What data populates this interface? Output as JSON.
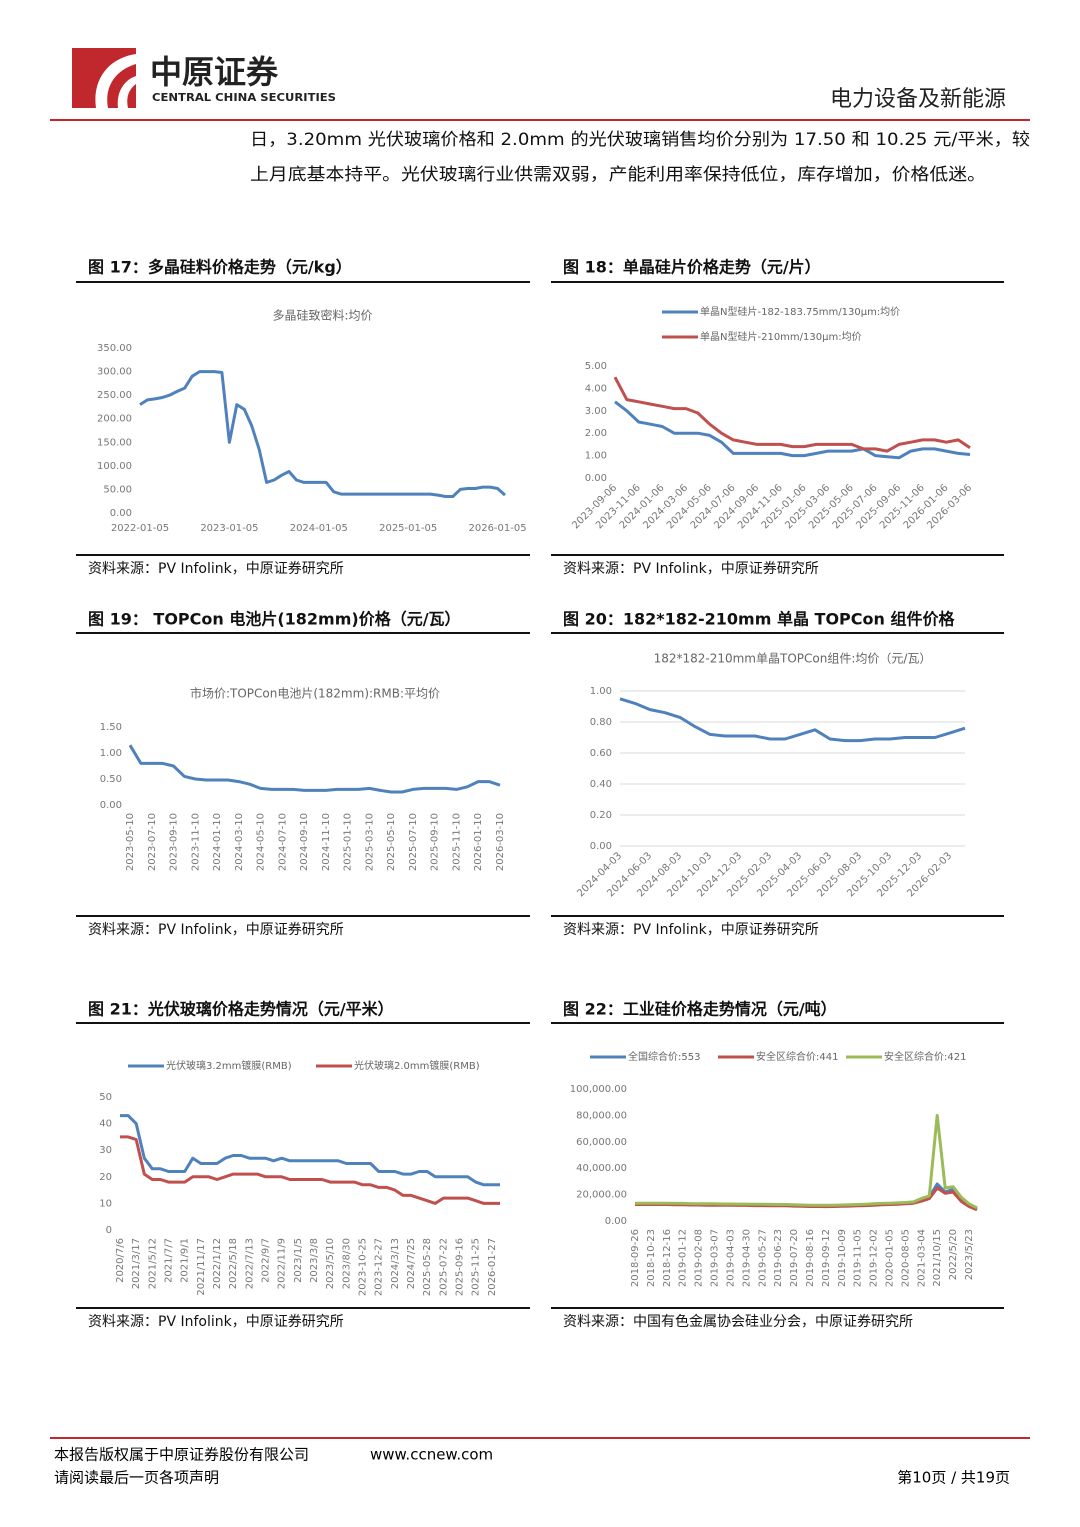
{
  "header": {
    "logo_cn": "中原证券",
    "logo_en": "CENTRAL CHINA SECURITIES",
    "sector": "电力设备及新能源"
  },
  "paragraph": [
    "日，3.20mm 光伏玻璃价格和 2.0mm 的光伏玻璃销售均价分别为 17.50 和 10.25 元/平米，较",
    "上月底基本持平。光伏玻璃行业供需双弱，产能利用率保持低位，库存增加，价格低迷。"
  ],
  "chart_data": [
    {
      "type": "line",
      "caption": "图 17：多晶硅料价格走势（元/kg）",
      "title": "多晶硅致密料:均价",
      "source": "资料来源：PV Infolink，中原证券研究所",
      "grid": false,
      "categories": [
        "2022-01-05",
        null,
        null,
        null,
        null,
        null,
        null,
        null,
        null,
        null,
        null,
        null,
        "2023-01-05",
        null,
        null,
        null,
        null,
        null,
        null,
        null,
        null,
        null,
        null,
        null,
        "2024-01-05",
        null,
        null,
        null,
        null,
        null,
        null,
        null,
        null,
        null,
        null,
        null,
        "2025-01-05",
        null,
        null,
        null,
        null,
        null,
        null,
        null,
        null,
        null,
        null,
        null,
        "2026-01-05",
        null
      ],
      "series": [
        {
          "name": "多晶硅致密料:均价",
          "color": "#4f81bd",
          "values": [
            230,
            240,
            242,
            245,
            250,
            258,
            265,
            290,
            300,
            300,
            300,
            298,
            150,
            230,
            220,
            185,
            135,
            65,
            70,
            80,
            88,
            70,
            65,
            65,
            65,
            65,
            45,
            40,
            40,
            40,
            40,
            40,
            40,
            40,
            40,
            40,
            40,
            40,
            40,
            40,
            38,
            35,
            35,
            50,
            52,
            52,
            55,
            55,
            52,
            38
          ]
        }
      ],
      "ylim": [
        0,
        350
      ],
      "yticks": [
        {
          "value": 0,
          "label": "0.00"
        },
        {
          "value": 50,
          "label": "50.00"
        },
        {
          "value": 100,
          "label": "100.00"
        },
        {
          "value": 150,
          "label": "150.00"
        },
        {
          "value": 200,
          "label": "200.00"
        },
        {
          "value": 250,
          "label": "250.00"
        },
        {
          "value": 300,
          "label": "300.00"
        },
        {
          "value": 350,
          "label": "350.00"
        }
      ]
    },
    {
      "type": "line",
      "caption": "图 18：单晶硅片价格走势（元/片）",
      "source": "资料来源：PV Infolink，中原证券研究所",
      "grid": false,
      "legend": "top-left",
      "categories": [
        "2023-09-06",
        null,
        "2023-11-06",
        null,
        "2024-01-06",
        null,
        "2024-03-06",
        null,
        "2024-05-06",
        null,
        "2024-07-06",
        null,
        "2024-09-06",
        null,
        "2024-11-06",
        null,
        "2025-01-06",
        null,
        "2025-03-06",
        null,
        "2025-05-06",
        null,
        "2025-07-06",
        null,
        "2025-09-06",
        null,
        "2025-11-06",
        null,
        "2026-01-06",
        null,
        "2026-03-06"
      ],
      "series": [
        {
          "name": "单晶N型硅片-182-183.75mm/130μm:均价",
          "color": "#4f81bd",
          "values": [
            3.4,
            3.0,
            2.5,
            2.4,
            2.3,
            2.0,
            2.0,
            2.0,
            1.9,
            1.6,
            1.1,
            1.1,
            1.1,
            1.1,
            1.1,
            1.0,
            1.0,
            1.1,
            1.2,
            1.2,
            1.2,
            1.3,
            1.0,
            0.95,
            0.9,
            1.2,
            1.3,
            1.3,
            1.2,
            1.1,
            1.05
          ]
        },
        {
          "name": "单晶N型硅片-210mm/130μm:均价",
          "color": "#c0504d",
          "values": [
            4.5,
            3.5,
            3.4,
            3.3,
            3.2,
            3.1,
            3.1,
            2.9,
            2.4,
            2.0,
            1.7,
            1.6,
            1.5,
            1.5,
            1.5,
            1.4,
            1.4,
            1.5,
            1.5,
            1.5,
            1.5,
            1.3,
            1.3,
            1.2,
            1.5,
            1.6,
            1.7,
            1.7,
            1.6,
            1.7,
            1.35
          ]
        }
      ],
      "ylim": [
        0,
        5
      ],
      "yticks": [
        {
          "value": 0,
          "label": "0.00"
        },
        {
          "value": 1,
          "label": "1.00"
        },
        {
          "value": 2,
          "label": "2.00"
        },
        {
          "value": 3,
          "label": "3.00"
        },
        {
          "value": 4,
          "label": "4.00"
        },
        {
          "value": 5,
          "label": "5.00"
        }
      ]
    },
    {
      "type": "line",
      "caption": "图 19： TOPCon 电池片(182mm)价格（元/瓦）",
      "title": "市场价:TOPCon电池片(182mm):RMB:平均价",
      "source": "资料来源：PV Infolink，中原证券研究所",
      "grid": false,
      "categories": [
        "2023-05-10",
        null,
        "2023-07-10",
        null,
        "2023-09-10",
        null,
        "2023-11-10",
        null,
        "2024-01-10",
        null,
        "2024-03-10",
        null,
        "2024-05-10",
        null,
        "2024-07-10",
        null,
        "2024-09-10",
        null,
        "2024-11-10",
        null,
        "2025-01-10",
        null,
        "2025-03-10",
        null,
        "2025-05-10",
        null,
        "2025-07-10",
        null,
        "2025-09-10",
        null,
        "2025-11-10",
        null,
        "2026-01-10",
        null,
        "2026-03-10"
      ],
      "series": [
        {
          "name": "市场价:TOPCon电池片(182mm):RMB:平均价",
          "color": "#4f81bd",
          "values": [
            1.15,
            0.8,
            0.8,
            0.8,
            0.75,
            0.55,
            0.5,
            0.48,
            0.48,
            0.48,
            0.45,
            0.4,
            0.32,
            0.3,
            0.3,
            0.3,
            0.28,
            0.28,
            0.28,
            0.3,
            0.3,
            0.3,
            0.32,
            0.28,
            0.25,
            0.25,
            0.3,
            0.32,
            0.32,
            0.32,
            0.3,
            0.35,
            0.45,
            0.45,
            0.38
          ]
        }
      ],
      "ylim": [
        0,
        1.5
      ],
      "yticks": [
        {
          "value": 0,
          "label": "0.00"
        },
        {
          "value": 0.5,
          "label": "0.50"
        },
        {
          "value": 1,
          "label": "1.00"
        },
        {
          "value": 1.5,
          "label": "1.50"
        }
      ]
    },
    {
      "type": "line",
      "caption": "图 20：182*182-210mm 单晶 TOPCon 组件价格",
      "title": "182*182-210mm单晶TOPCon组件:均价（元/瓦）",
      "source": "资料来源：PV Infolink，中原证券研究所",
      "grid": true,
      "categories": [
        "2024-04-03",
        null,
        "2024-06-03",
        null,
        "2024-08-03",
        null,
        "2024-10-03",
        null,
        "2024-12-03",
        null,
        "2025-02-03",
        null,
        "2025-04-03",
        null,
        "2025-06-03",
        null,
        "2025-08-03",
        null,
        "2025-10-03",
        null,
        "2025-12-03",
        null,
        "2026-02-03",
        null
      ],
      "series": [
        {
          "name": "182*182-210mm单晶TOPCon组件:均价（元/瓦）",
          "color": "#4f81bd",
          "values": [
            0.95,
            0.92,
            0.88,
            0.86,
            0.83,
            0.77,
            0.72,
            0.71,
            0.71,
            0.71,
            0.69,
            0.69,
            0.72,
            0.75,
            0.69,
            0.68,
            0.68,
            0.69,
            0.69,
            0.7,
            0.7,
            0.7,
            0.73,
            0.76
          ]
        }
      ],
      "ylim": [
        0,
        1
      ],
      "yticks": [
        {
          "value": 0,
          "label": "0.00"
        },
        {
          "value": 0.2,
          "label": "0.20"
        },
        {
          "value": 0.4,
          "label": "0.40"
        },
        {
          "value": 0.6,
          "label": "0.60"
        },
        {
          "value": 0.8,
          "label": "0.80"
        },
        {
          "value": 1,
          "label": "1.00"
        }
      ]
    },
    {
      "type": "line",
      "caption": "图 21：光伏玻璃价格走势情况（元/平米）",
      "source": "资料来源：PV Infolink，中原证券研究所",
      "grid": false,
      "legend": "top",
      "categories": [
        "2020/7/6",
        null,
        "2021/3/17",
        null,
        "2021/5/12",
        null,
        "2021/7/7",
        null,
        "2021/9/1",
        null,
        "2021/11/17",
        null,
        "2022/1/12",
        null,
        "2022/5/18",
        null,
        "2022/7/13",
        null,
        "2022/9/7",
        null,
        "2022/11/9",
        null,
        "2023/1/5",
        null,
        "2023/3/8",
        null,
        "2023/5/10",
        null,
        "2023/8/30",
        null,
        "2023-10-25",
        null,
        "2023-12-27",
        null,
        "2024/3/13",
        null,
        "2024/7/25",
        null,
        "2025-05-28",
        null,
        "2025-07-22",
        null,
        "2025-09-16",
        null,
        "2025-11-25",
        null,
        "2026-01-27",
        null
      ],
      "series": [
        {
          "name": "光伏玻璃3.2mm镀膜(RMB)",
          "color": "#4f81bd",
          "values": [
            43,
            43,
            40,
            27,
            23,
            23,
            22,
            22,
            22,
            27,
            25,
            25,
            25,
            27,
            28,
            28,
            27,
            27,
            27,
            26,
            27,
            26,
            26,
            26,
            26,
            26,
            26,
            26,
            25,
            25,
            25,
            25,
            22,
            22,
            22,
            21,
            21,
            22,
            22,
            20,
            20,
            20,
            20,
            20,
            18,
            17,
            17,
            17
          ]
        },
        {
          "name": "光伏玻璃2.0mm镀膜(RMB)",
          "color": "#c0504d",
          "values": [
            35,
            35,
            34,
            21,
            19,
            19,
            18,
            18,
            18,
            20,
            20,
            20,
            19,
            20,
            21,
            21,
            21,
            21,
            20,
            20,
            20,
            19,
            19,
            19,
            19,
            19,
            18,
            18,
            18,
            18,
            17,
            17,
            16,
            16,
            15,
            13,
            13,
            12,
            11,
            10,
            12,
            12,
            12,
            12,
            11,
            10,
            10,
            10
          ]
        }
      ],
      "ylim": [
        0,
        50
      ],
      "yticks": [
        0,
        10,
        20,
        30,
        40,
        50
      ]
    },
    {
      "type": "line",
      "caption": "图 22：工业硅价格走势情况（元/吨）",
      "source": "资料来源：中国有色金属协会硅业分会，中原证券研究所",
      "grid": false,
      "legend": "top",
      "categories": [
        "2018-09-26",
        null,
        "2018-10-23",
        null,
        "2018-12-16",
        null,
        "2019-01-12",
        null,
        "2019-02-08",
        null,
        "2019-03-07",
        null,
        "2019-04-03",
        null,
        "2019-04-30",
        null,
        "2019-05-27",
        null,
        "2019-06-23",
        null,
        "2019-07-20",
        null,
        "2019-08-16",
        null,
        "2019-09-12",
        null,
        "2019-10-09",
        null,
        "2019-11-05",
        null,
        "2019-12-02",
        null,
        "2020-01-05",
        null,
        "2020-08-05",
        null,
        "2021-03-04",
        null,
        "2021/10/15",
        null,
        "2022/5/20",
        null,
        "2023/5/23",
        null
      ],
      "series": [
        {
          "name": "全国综合价:553",
          "color": "#4f81bd",
          "values": [
            13000,
            13000,
            13000,
            13000,
            13000,
            12800,
            12800,
            12600,
            12600,
            12500,
            12500,
            12400,
            12400,
            12300,
            12300,
            12200,
            12200,
            12100,
            12000,
            12000,
            11800,
            11600,
            11500,
            11500,
            11400,
            11500,
            11600,
            11800,
            12000,
            12200,
            12500,
            12800,
            13000,
            13200,
            13500,
            14000,
            16000,
            18000,
            28000,
            22000,
            24000,
            16000,
            12000,
            9000
          ]
        },
        {
          "name": "安全区综合价:441",
          "color": "#c0504d",
          "values": [
            12500,
            12500,
            12500,
            12500,
            12500,
            12300,
            12300,
            12100,
            12100,
            12000,
            12000,
            11900,
            11900,
            11800,
            11800,
            11700,
            11700,
            11600,
            11500,
            11500,
            11300,
            11100,
            11000,
            11000,
            10900,
            11000,
            11100,
            11300,
            11500,
            11700,
            12000,
            12300,
            12500,
            12700,
            13000,
            13500,
            15000,
            17000,
            25000,
            21000,
            22000,
            15000,
            11000,
            8500
          ]
        },
        {
          "name": "安全区综合价:421",
          "color": "#9bbb59",
          "values": [
            13500,
            13500,
            13500,
            13500,
            13500,
            13300,
            13300,
            13100,
            13100,
            13000,
            13000,
            12900,
            12900,
            12800,
            12800,
            12700,
            12700,
            12600,
            12500,
            12500,
            12300,
            12100,
            12000,
            12000,
            11900,
            12000,
            12100,
            12300,
            12500,
            12700,
            13000,
            13300,
            13500,
            13700,
            14000,
            14500,
            17000,
            19000,
            80000,
            25000,
            26000,
            18000,
            13000,
            10000
          ]
        }
      ],
      "ylim": [
        0,
        100000
      ],
      "yticks": [
        {
          "value": 0,
          "label": "0.00"
        },
        {
          "value": 20000,
          "label": "20,000.00"
        },
        {
          "value": 40000,
          "label": "40,000.00"
        },
        {
          "value": 60000,
          "label": "60,000.00"
        },
        {
          "value": 80000,
          "label": "80,000.00"
        },
        {
          "value": 100000,
          "label": "100,000.00"
        }
      ]
    }
  ],
  "footer": {
    "copyright": "本报告版权属于中原证券股份有限公司",
    "url": "www.ccnew.com",
    "notice": "请阅读最后一页各项声明",
    "page": "第10页 / 共19页"
  }
}
